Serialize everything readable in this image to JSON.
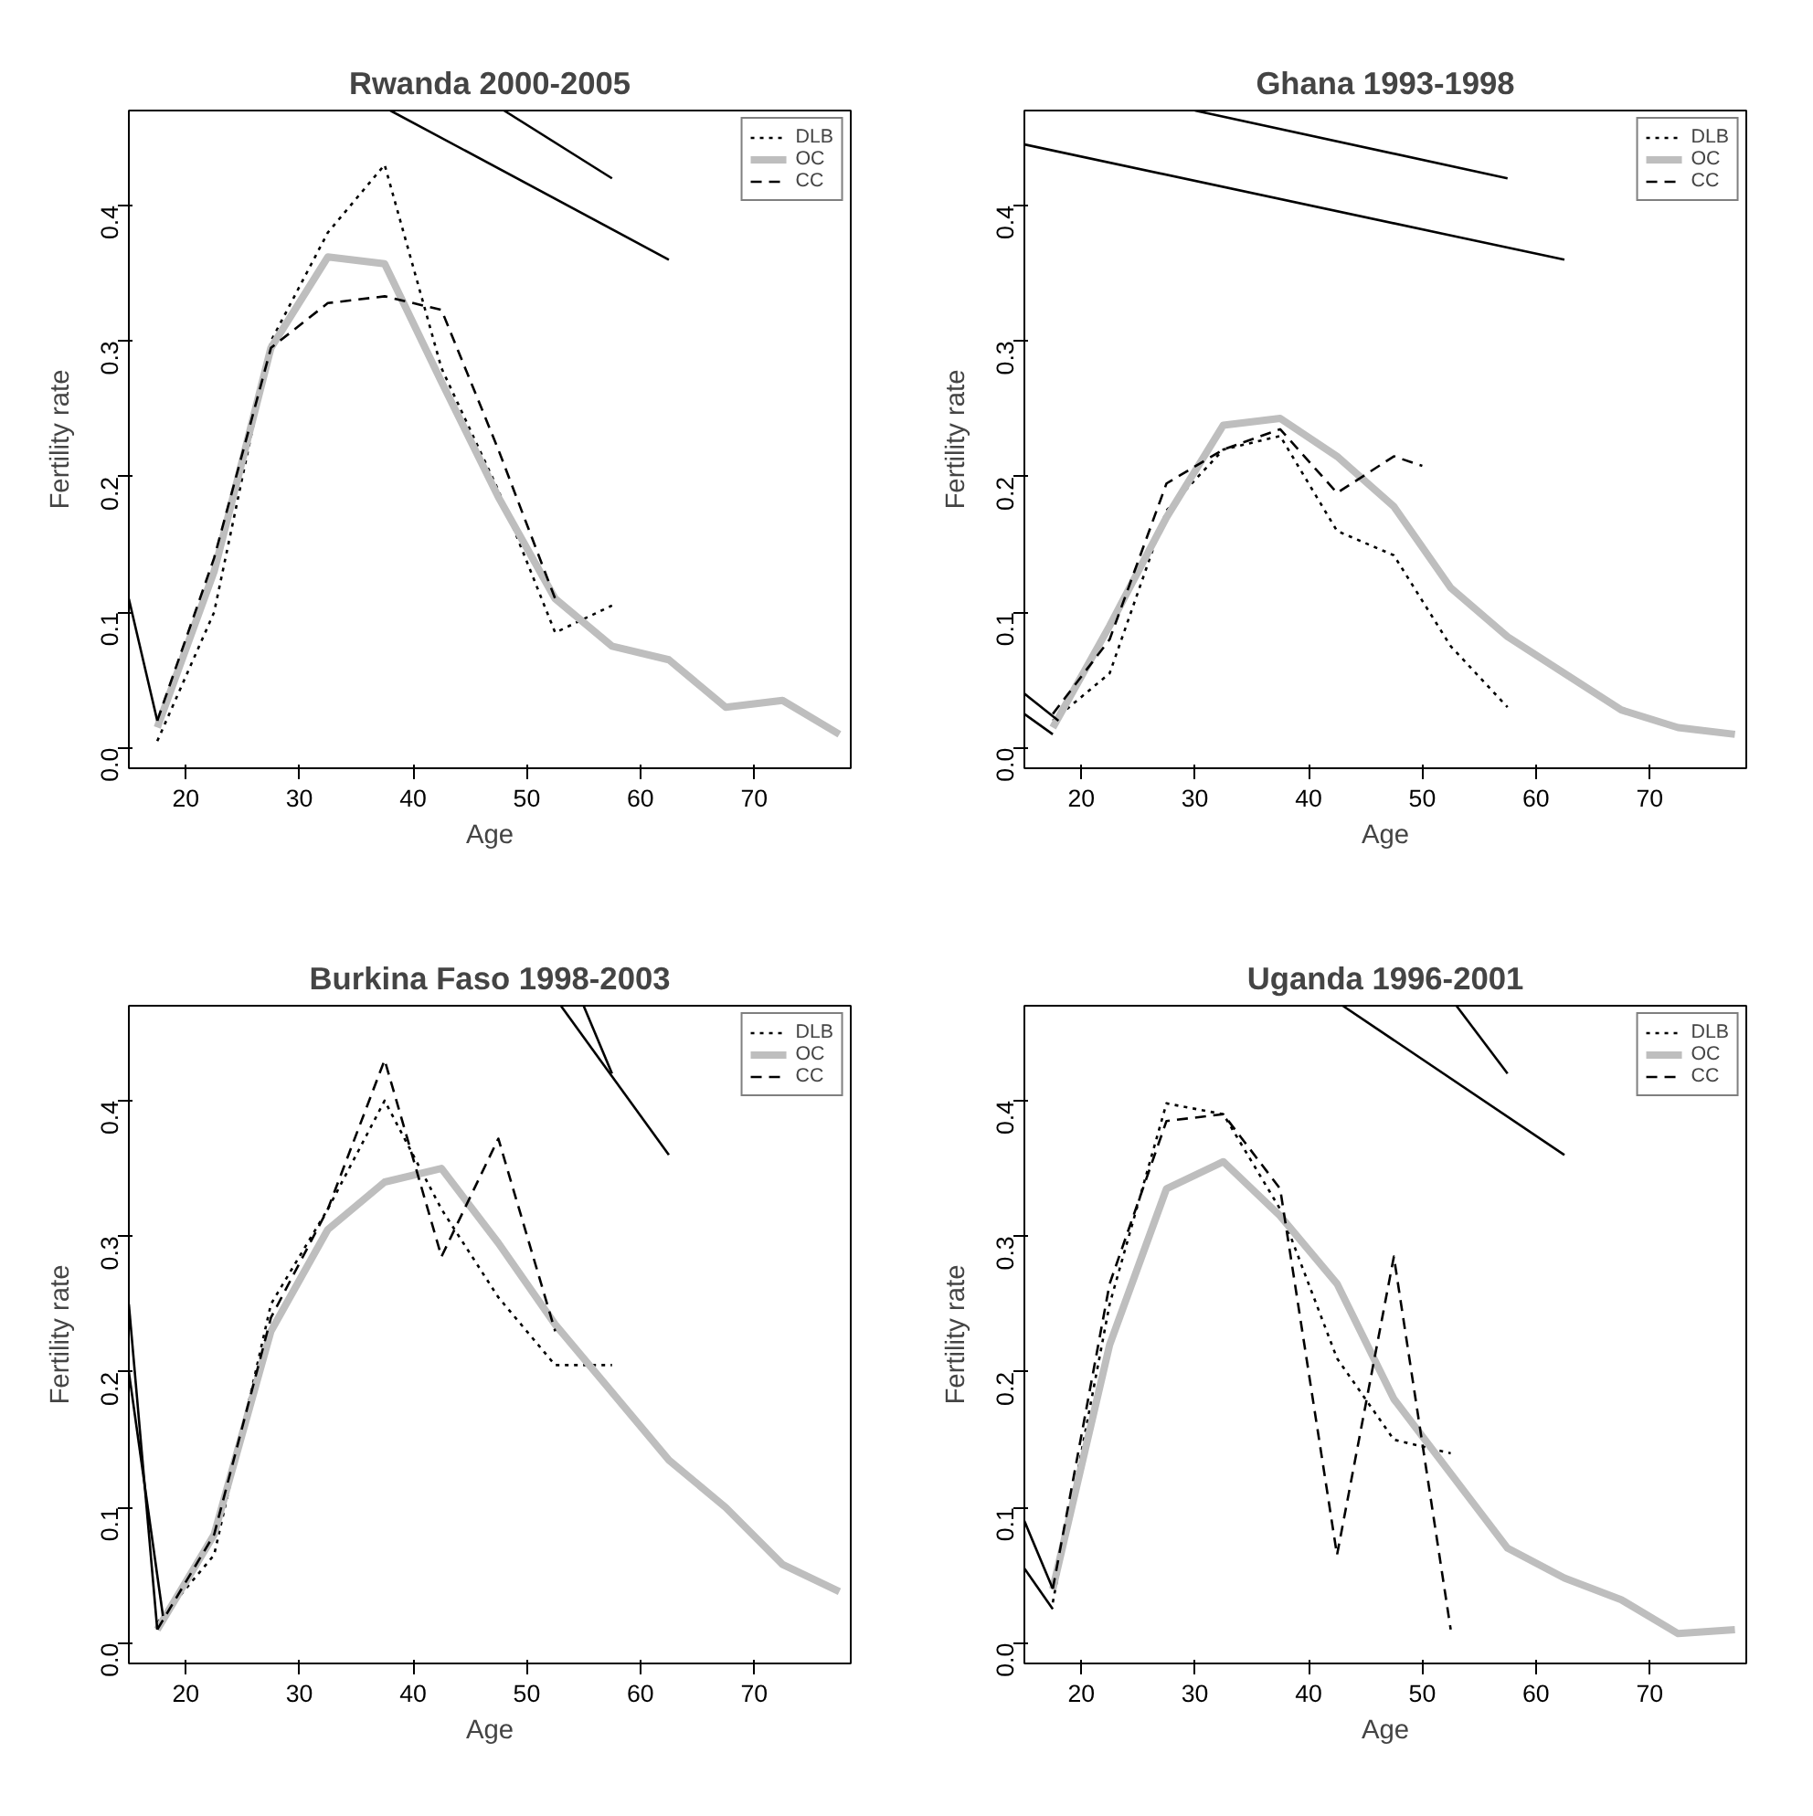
{
  "chart_data": [
    {
      "type": "line",
      "title": "Rwanda 2000-2005",
      "xlabel": "Age",
      "ylabel": "Fertility rate",
      "xlim": [
        15,
        78.5
      ],
      "ylim": [
        -0.015,
        0.47
      ],
      "xticks": [
        20,
        30,
        40,
        50,
        60,
        70
      ],
      "yticks": [
        {
          "value": 0,
          "label": "0.0"
        },
        {
          "value": 0.1,
          "label": "0.1"
        },
        {
          "value": 0.2,
          "label": "0.2"
        },
        {
          "value": 0.3,
          "label": "0.3"
        },
        {
          "value": 0.4,
          "label": "0.4"
        }
      ],
      "legend": "top right",
      "grid": false,
      "series": [
        {
          "name": "DLB",
          "color": "#000000",
          "line_style": "dotted",
          "x": [
            17.5,
            22.5,
            27.5,
            32.5,
            37.5,
            42.5,
            47.5,
            52.5,
            57.5
          ],
          "values": [
            0.005,
            0.1,
            0.3,
            0.38,
            0.43,
            0.28,
            0.19,
            0.085,
            0.105
          ]
        },
        {
          "name": "OC",
          "color": "#bebebe",
          "line_style": "solid",
          "x": [
            17.5,
            22.5,
            27.5,
            32.5,
            37.5,
            42.5,
            47.5,
            52.5,
            57.5,
            62.5,
            67.5,
            72.5,
            77.5
          ],
          "values": [
            0.015,
            0.13,
            0.295,
            0.362,
            0.357,
            0.27,
            0.185,
            0.11,
            0.075,
            0.065,
            0.03,
            0.035,
            0.01
          ]
        },
        {
          "name": "CC",
          "color": "#000000",
          "line_style": "dashed",
          "x": [
            17.5,
            22.5,
            27.5,
            32.5,
            37.5,
            42.5,
            47.5,
            52.5
          ],
          "values": [
            0.02,
            0.14,
            0.295,
            0.328,
            0.333,
            0.323,
            0.22,
            0.11
          ]
        },
        {
          "color": "#000000",
          "line_style": "solid",
          "x": [
            15,
            17.5
          ],
          "values": [
            0.11,
            0.02
          ]
        },
        {
          "color": "#000000",
          "line_style": "solid",
          "x": [
            38,
            62.5
          ],
          "values": [
            0.47,
            0.36
          ]
        },
        {
          "color": "#000000",
          "line_style": "solid",
          "x": [
            48,
            57.5
          ],
          "values": [
            0.47,
            0.42
          ]
        }
      ]
    },
    {
      "type": "line",
      "title": "Ghana 1993-1998",
      "xlabel": "Age",
      "ylabel": "Fertility rate",
      "xlim": [
        15,
        78.5
      ],
      "ylim": [
        -0.015,
        0.47
      ],
      "xticks": [
        20,
        30,
        40,
        50,
        60,
        70
      ],
      "yticks": [
        {
          "value": 0,
          "label": "0.0"
        },
        {
          "value": 0.1,
          "label": "0.1"
        },
        {
          "value": 0.2,
          "label": "0.2"
        },
        {
          "value": 0.3,
          "label": "0.3"
        },
        {
          "value": 0.4,
          "label": "0.4"
        }
      ],
      "legend": "top right",
      "grid": false,
      "series": [
        {
          "name": "DLB",
          "color": "#000000",
          "line_style": "dotted",
          "x": [
            17.5,
            22.5,
            27.5,
            32.5,
            37.5,
            42.5,
            47.5,
            52.5,
            57.5
          ],
          "values": [
            0.02,
            0.055,
            0.175,
            0.22,
            0.23,
            0.16,
            0.142,
            0.075,
            0.03
          ]
        },
        {
          "name": "OC",
          "color": "#bebebe",
          "line_style": "solid",
          "x": [
            17.5,
            22.5,
            27.5,
            32.5,
            37.5,
            42.5,
            47.5,
            52.5,
            57.5,
            62.5,
            67.5,
            72.5,
            77.5
          ],
          "values": [
            0.015,
            0.09,
            0.17,
            0.238,
            0.243,
            0.215,
            0.178,
            0.118,
            0.082,
            0.055,
            0.028,
            0.015,
            0.01
          ]
        },
        {
          "name": "CC",
          "color": "#000000",
          "line_style": "dashed",
          "x": [
            17.5,
            22.5,
            27.5,
            32.5,
            37.5,
            42.5,
            47.5,
            50
          ],
          "values": [
            0.025,
            0.08,
            0.195,
            0.22,
            0.235,
            0.188,
            0.215,
            0.208
          ]
        },
        {
          "color": "#000000",
          "line_style": "solid",
          "x": [
            15,
            18
          ],
          "values": [
            0.04,
            0.02
          ]
        },
        {
          "color": "#000000",
          "line_style": "solid",
          "x": [
            15,
            17.5
          ],
          "values": [
            0.025,
            0.01
          ]
        },
        {
          "color": "#000000",
          "line_style": "solid",
          "x": [
            15,
            62.5
          ],
          "values": [
            0.445,
            0.36
          ]
        },
        {
          "color": "#000000",
          "line_style": "solid",
          "x": [
            30,
            57.5
          ],
          "values": [
            0.47,
            0.42
          ]
        }
      ]
    },
    {
      "type": "line",
      "title": "Burkina Faso 1998-2003",
      "xlabel": "Age",
      "ylabel": "Fertility rate",
      "xlim": [
        15,
        78.5
      ],
      "ylim": [
        -0.015,
        0.47
      ],
      "xticks": [
        20,
        30,
        40,
        50,
        60,
        70
      ],
      "yticks": [
        {
          "value": 0,
          "label": "0.0"
        },
        {
          "value": 0.1,
          "label": "0.1"
        },
        {
          "value": 0.2,
          "label": "0.2"
        },
        {
          "value": 0.3,
          "label": "0.3"
        },
        {
          "value": 0.4,
          "label": "0.4"
        }
      ],
      "legend": "top right",
      "grid": false,
      "series": [
        {
          "name": "DLB",
          "color": "#000000",
          "line_style": "dotted",
          "x": [
            17.5,
            22.5,
            27.5,
            32.5,
            37.5,
            42.5,
            47.5,
            52.5,
            57.5
          ],
          "values": [
            0.015,
            0.065,
            0.25,
            0.32,
            0.4,
            0.32,
            0.255,
            0.205,
            0.205
          ]
        },
        {
          "name": "OC",
          "color": "#bebebe",
          "line_style": "solid",
          "x": [
            17.5,
            22.5,
            27.5,
            32.5,
            37.5,
            42.5,
            47.5,
            52.5,
            57.5,
            62.5,
            67.5,
            72.5,
            77.5
          ],
          "values": [
            0.01,
            0.08,
            0.23,
            0.305,
            0.34,
            0.35,
            0.295,
            0.235,
            0.185,
            0.135,
            0.1,
            0.058,
            0.038
          ]
        },
        {
          "name": "CC",
          "color": "#000000",
          "line_style": "dashed",
          "x": [
            17.5,
            22.5,
            27.5,
            32.5,
            37.5,
            42.5,
            47.5,
            52.5
          ],
          "values": [
            0.01,
            0.08,
            0.24,
            0.32,
            0.43,
            0.285,
            0.372,
            0.23
          ]
        },
        {
          "color": "#000000",
          "line_style": "solid",
          "x": [
            15,
            17.5
          ],
          "values": [
            0.25,
            0.01
          ]
        },
        {
          "color": "#000000",
          "line_style": "solid",
          "x": [
            15,
            18
          ],
          "values": [
            0.2,
            0.02
          ]
        },
        {
          "color": "#000000",
          "line_style": "solid",
          "x": [
            53,
            62.5
          ],
          "values": [
            0.47,
            0.36
          ]
        },
        {
          "color": "#000000",
          "line_style": "solid",
          "x": [
            55,
            57.5
          ],
          "values": [
            0.47,
            0.42
          ]
        }
      ]
    },
    {
      "type": "line",
      "title": "Uganda 1996-2001",
      "xlabel": "Age",
      "ylabel": "Fertility rate",
      "xlim": [
        15,
        78.5
      ],
      "ylim": [
        -0.015,
        0.47
      ],
      "xticks": [
        20,
        30,
        40,
        50,
        60,
        70
      ],
      "yticks": [
        {
          "value": 0,
          "label": "0.0"
        },
        {
          "value": 0.1,
          "label": "0.1"
        },
        {
          "value": 0.2,
          "label": "0.2"
        },
        {
          "value": 0.3,
          "label": "0.3"
        },
        {
          "value": 0.4,
          "label": "0.4"
        }
      ],
      "legend": "top right",
      "grid": false,
      "series": [
        {
          "name": "DLB",
          "color": "#000000",
          "line_style": "dotted",
          "x": [
            17.5,
            22.5,
            27.5,
            32.5,
            37.5,
            42.5,
            47.5,
            52.5
          ],
          "values": [
            0.03,
            0.25,
            0.398,
            0.39,
            0.32,
            0.21,
            0.15,
            0.14
          ]
        },
        {
          "name": "OC",
          "color": "#bebebe",
          "line_style": "solid",
          "x": [
            17.5,
            22.5,
            27.5,
            32.5,
            37.5,
            42.5,
            47.5,
            52.5,
            57.5,
            62.5,
            67.5,
            72.5,
            77.5
          ],
          "values": [
            0.04,
            0.22,
            0.335,
            0.355,
            0.315,
            0.265,
            0.18,
            0.125,
            0.07,
            0.048,
            0.032,
            0.007,
            0.01
          ]
        },
        {
          "name": "CC",
          "color": "#000000",
          "line_style": "dashed",
          "x": [
            17.5,
            22.5,
            27.5,
            32.5,
            37.5,
            42.5,
            47.5,
            52.5
          ],
          "values": [
            0.04,
            0.265,
            0.385,
            0.39,
            0.335,
            0.065,
            0.285,
            0.01
          ]
        },
        {
          "color": "#000000",
          "line_style": "solid",
          "x": [
            15,
            17.5
          ],
          "values": [
            0.09,
            0.04
          ]
        },
        {
          "color": "#000000",
          "line_style": "solid",
          "x": [
            15,
            17.5
          ],
          "values": [
            0.055,
            0.025
          ]
        },
        {
          "color": "#000000",
          "line_style": "solid",
          "x": [
            43,
            62.5
          ],
          "values": [
            0.47,
            0.36
          ]
        },
        {
          "color": "#000000",
          "line_style": "solid",
          "x": [
            53,
            57.5
          ],
          "values": [
            0.47,
            0.42
          ]
        }
      ]
    }
  ]
}
